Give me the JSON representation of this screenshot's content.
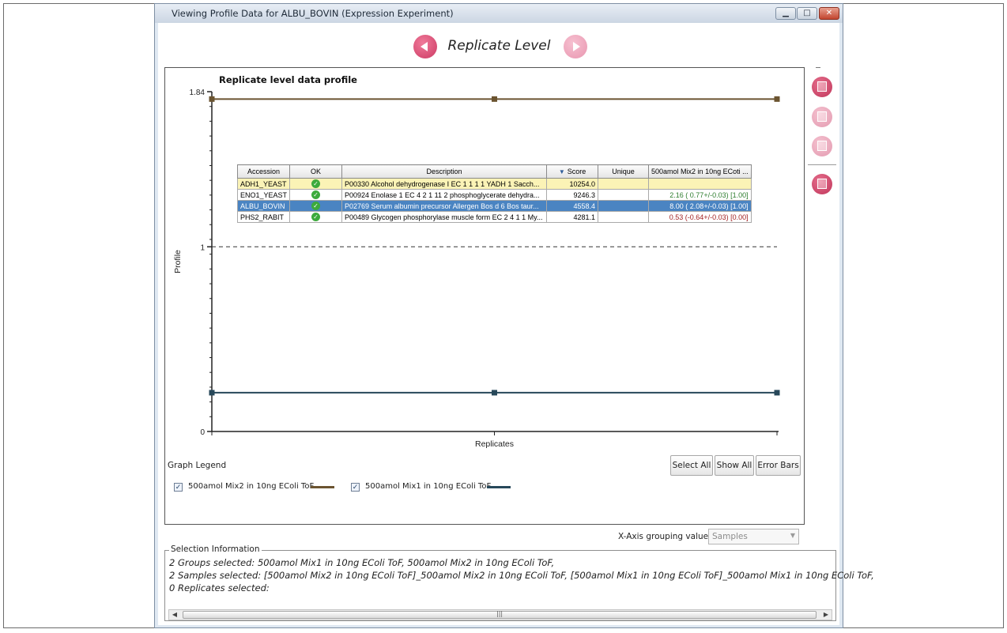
{
  "window": {
    "title": "Viewing Profile Data for ALBU_BOVIN (Expression Experiment)"
  },
  "nav": {
    "level_title": "Replicate Level"
  },
  "chart_data": {
    "type": "line",
    "title": "Replicate level data profile",
    "ylabel": "Profile",
    "xlabel": "Replicates",
    "ylim": [
      0,
      1.84
    ],
    "y_ticks_labeled": [
      "0",
      "1",
      "1.84"
    ],
    "reference_line": 1,
    "x": [
      1,
      2,
      3
    ],
    "series": [
      {
        "name": "500amol Mix2 in 10ng EColi ToF",
        "color": "#6b5430",
        "values": [
          1.8,
          1.8,
          1.8
        ]
      },
      {
        "name": "500amol Mix1 in 10ng EColi ToF",
        "color": "#27485a",
        "values": [
          0.21,
          0.21,
          0.21
        ]
      }
    ]
  },
  "table": {
    "columns": [
      "Accession",
      "OK",
      "Description",
      "Score",
      "Unique",
      "500amol Mix2 in 10ng ECoti ..."
    ],
    "rows": [
      {
        "accession": "ADH1_YEAST",
        "description": "P00330 Alcohol dehydrogenase I EC 1 1 1 1 YADH 1 Sacch...",
        "score": "10254.0",
        "unique": "",
        "ratio": "",
        "ratio_color": "green",
        "style": "yellow"
      },
      {
        "accession": "ENO1_YEAST",
        "description": "P00924 Enolase 1 EC 4 2 1 11 2 phosphoglycerate dehydra...",
        "score": "9246.3",
        "unique": "",
        "ratio": "2.16 ( 0.77+/-0.03) [1.00]",
        "ratio_color": "green",
        "style": "normal"
      },
      {
        "accession": "ALBU_BOVIN",
        "description": "P02769 Serum albumin precursor Allergen Bos d 6 Bos taur...",
        "score": "4558.4",
        "unique": "",
        "ratio": "8.00 ( 2.08+/-0.03) [1.00]",
        "ratio_color": "green",
        "style": "selected"
      },
      {
        "accession": "PHS2_RABIT",
        "description": "P00489 Glycogen phosphorylase muscle form EC 2 4 1 1 My...",
        "score": "4281.1",
        "unique": "",
        "ratio": "0.53 (-0.64+/-0.03) [0.00]",
        "ratio_color": "red",
        "style": "normal"
      }
    ]
  },
  "legend": {
    "title": "Graph Legend",
    "items": [
      {
        "label": "500amol Mix2 in 10ng EColi ToF",
        "color": "#6b5430",
        "checked": true
      },
      {
        "label": "500amol Mix1 in 10ng EColi ToF",
        "color": "#27485a",
        "checked": true
      }
    ],
    "buttons": {
      "select_all": "Select All",
      "show_all": "Show All",
      "error_bars": "Error Bars"
    }
  },
  "xaxis_grouping": {
    "label": "X-Axis grouping value:",
    "value": "Samples"
  },
  "selection_info": {
    "title": "Selection Information",
    "lines": [
      "2 Groups selected: 500amol Mix1 in 10ng EColi ToF, 500amol Mix2 in 10ng EColi ToF,",
      "2 Samples selected: [500amol Mix2 in 10ng EColi ToF]_500amol Mix2 in 10ng EColi ToF, [500amol Mix1 in 10ng EColi ToF]_500amol Mix1 in 10ng EColi ToF,",
      "0 Replicates selected:"
    ]
  },
  "icons": {
    "nav_prev": "arrow-left-icon",
    "nav_next": "arrow-right-icon",
    "ok": "checkmark-icon",
    "sort": "sort-desc-icon",
    "side": [
      "line-chart-icon",
      "bar-chart-icon",
      "histogram-icon",
      "report-icon"
    ]
  }
}
